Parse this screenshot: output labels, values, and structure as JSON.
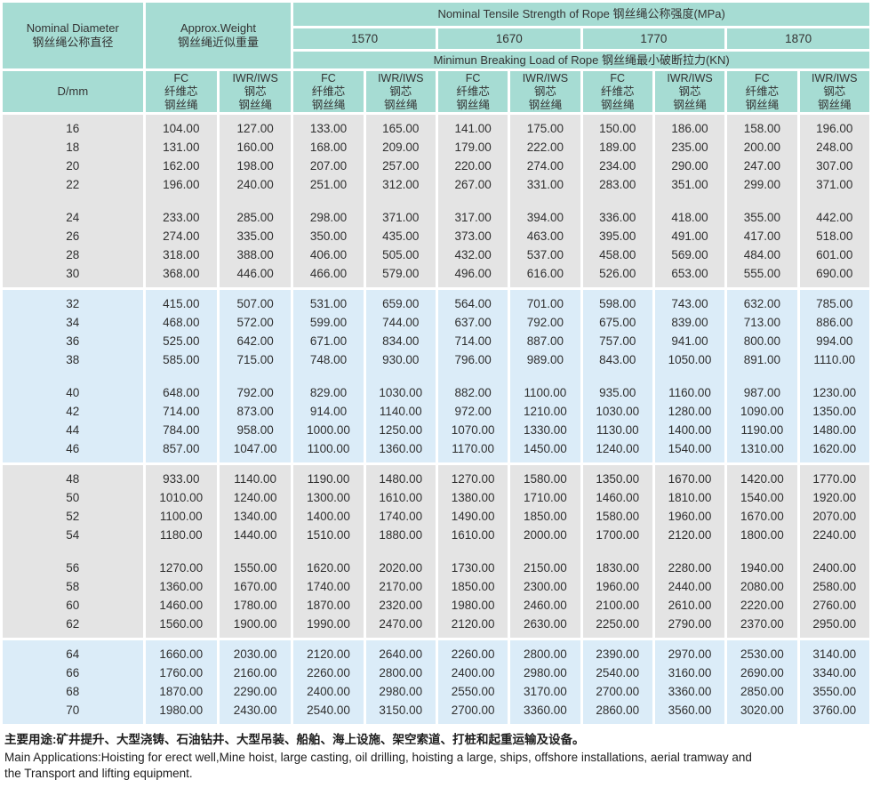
{
  "header": {
    "col_diameter": {
      "en": "Nominal Diameter",
      "zh": "钢丝绳公称直径"
    },
    "col_weight": {
      "en": "Approx.Weight",
      "zh": "钢丝绳近似重量"
    },
    "tensile_title": "Nominal Tensile Strength of Rope  钢丝绳公称强度(MPa)",
    "strength_grades": [
      "1570",
      "1670",
      "1770",
      "1870"
    ],
    "breaking_title": "Minimun Breaking Load of Rope  钢丝绳最小破断拉力(KN)",
    "d_mm": "D/mm",
    "fc_label": {
      "l1": "FC",
      "l2": "纤维芯",
      "l3": "钢丝绳"
    },
    "iwr_label": {
      "l1": "IWR/IWS",
      "l2": "钢芯",
      "l3": "钢丝绳"
    }
  },
  "colors": {
    "header_teal": "#a6dcd3",
    "block_gray": "#e4e4e4",
    "block_blue": "#dbecf8",
    "grid_white": "#ffffff"
  },
  "table": {
    "blocks": [
      {
        "color": "gray",
        "groups": [
          [
            [
              "16",
              "104.00",
              "127.00",
              "133.00",
              "165.00",
              "141.00",
              "175.00",
              "150.00",
              "186.00",
              "158.00",
              "196.00"
            ],
            [
              "18",
              "131.00",
              "160.00",
              "168.00",
              "209.00",
              "179.00",
              "222.00",
              "189.00",
              "235.00",
              "200.00",
              "248.00"
            ],
            [
              "20",
              "162.00",
              "198.00",
              "207.00",
              "257.00",
              "220.00",
              "274.00",
              "234.00",
              "290.00",
              "247.00",
              "307.00"
            ],
            [
              "22",
              "196.00",
              "240.00",
              "251.00",
              "312.00",
              "267.00",
              "331.00",
              "283.00",
              "351.00",
              "299.00",
              "371.00"
            ]
          ],
          [
            [
              "24",
              "233.00",
              "285.00",
              "298.00",
              "371.00",
              "317.00",
              "394.00",
              "336.00",
              "418.00",
              "355.00",
              "442.00"
            ],
            [
              "26",
              "274.00",
              "335.00",
              "350.00",
              "435.00",
              "373.00",
              "463.00",
              "395.00",
              "491.00",
              "417.00",
              "518.00"
            ],
            [
              "28",
              "318.00",
              "388.00",
              "406.00",
              "505.00",
              "432.00",
              "537.00",
              "458.00",
              "569.00",
              "484.00",
              "601.00"
            ],
            [
              "30",
              "368.00",
              "446.00",
              "466.00",
              "579.00",
              "496.00",
              "616.00",
              "526.00",
              "653.00",
              "555.00",
              "690.00"
            ]
          ]
        ]
      },
      {
        "color": "blue",
        "groups": [
          [
            [
              "32",
              "415.00",
              "507.00",
              "531.00",
              "659.00",
              "564.00",
              "701.00",
              "598.00",
              "743.00",
              "632.00",
              "785.00"
            ],
            [
              "34",
              "468.00",
              "572.00",
              "599.00",
              "744.00",
              "637.00",
              "792.00",
              "675.00",
              "839.00",
              "713.00",
              "886.00"
            ],
            [
              "36",
              "525.00",
              "642.00",
              "671.00",
              "834.00",
              "714.00",
              "887.00",
              "757.00",
              "941.00",
              "800.00",
              "994.00"
            ],
            [
              "38",
              "585.00",
              "715.00",
              "748.00",
              "930.00",
              "796.00",
              "989.00",
              "843.00",
              "1050.00",
              "891.00",
              "1110.00"
            ]
          ],
          [
            [
              "40",
              "648.00",
              "792.00",
              "829.00",
              "1030.00",
              "882.00",
              "1100.00",
              "935.00",
              "1160.00",
              "987.00",
              "1230.00"
            ],
            [
              "42",
              "714.00",
              "873.00",
              "914.00",
              "1140.00",
              "972.00",
              "1210.00",
              "1030.00",
              "1280.00",
              "1090.00",
              "1350.00"
            ],
            [
              "44",
              "784.00",
              "958.00",
              "1000.00",
              "1250.00",
              "1070.00",
              "1330.00",
              "1130.00",
              "1400.00",
              "1190.00",
              "1480.00"
            ],
            [
              "46",
              "857.00",
              "1047.00",
              "1100.00",
              "1360.00",
              "1170.00",
              "1450.00",
              "1240.00",
              "1540.00",
              "1310.00",
              "1620.00"
            ]
          ]
        ]
      },
      {
        "color": "gray",
        "groups": [
          [
            [
              "48",
              "933.00",
              "1140.00",
              "1190.00",
              "1480.00",
              "1270.00",
              "1580.00",
              "1350.00",
              "1670.00",
              "1420.00",
              "1770.00"
            ],
            [
              "50",
              "1010.00",
              "1240.00",
              "1300.00",
              "1610.00",
              "1380.00",
              "1710.00",
              "1460.00",
              "1810.00",
              "1540.00",
              "1920.00"
            ],
            [
              "52",
              "1100.00",
              "1340.00",
              "1400.00",
              "1740.00",
              "1490.00",
              "1850.00",
              "1580.00",
              "1960.00",
              "1670.00",
              "2070.00"
            ],
            [
              "54",
              "1180.00",
              "1440.00",
              "1510.00",
              "1880.00",
              "1610.00",
              "2000.00",
              "1700.00",
              "2120.00",
              "1800.00",
              "2240.00"
            ]
          ],
          [
            [
              "56",
              "1270.00",
              "1550.00",
              "1620.00",
              "2020.00",
              "1730.00",
              "2150.00",
              "1830.00",
              "2280.00",
              "1940.00",
              "2400.00"
            ],
            [
              "58",
              "1360.00",
              "1670.00",
              "1740.00",
              "2170.00",
              "1850.00",
              "2300.00",
              "1960.00",
              "2440.00",
              "2080.00",
              "2580.00"
            ],
            [
              "60",
              "1460.00",
              "1780.00",
              "1870.00",
              "2320.00",
              "1980.00",
              "2460.00",
              "2100.00",
              "2610.00",
              "2220.00",
              "2760.00"
            ],
            [
              "62",
              "1560.00",
              "1900.00",
              "1990.00",
              "2470.00",
              "2120.00",
              "2630.00",
              "2250.00",
              "2790.00",
              "2370.00",
              "2950.00"
            ]
          ]
        ]
      },
      {
        "color": "blue",
        "groups": [
          [
            [
              "64",
              "1660.00",
              "2030.00",
              "2120.00",
              "2640.00",
              "2260.00",
              "2800.00",
              "2390.00",
              "2970.00",
              "2530.00",
              "3140.00"
            ],
            [
              "66",
              "1760.00",
              "2160.00",
              "2260.00",
              "2800.00",
              "2400.00",
              "2980.00",
              "2540.00",
              "3160.00",
              "2690.00",
              "3340.00"
            ],
            [
              "68",
              "1870.00",
              "2290.00",
              "2400.00",
              "2980.00",
              "2550.00",
              "3170.00",
              "2700.00",
              "3360.00",
              "2850.00",
              "3550.00"
            ],
            [
              "70",
              "1980.00",
              "2430.00",
              "2540.00",
              "3150.00",
              "2700.00",
              "3360.00",
              "2860.00",
              "3560.00",
              "3020.00",
              "3760.00"
            ]
          ]
        ]
      }
    ]
  },
  "footer": {
    "zh": "主要用途:矿井提升、大型浇铸、石油钻井、大型吊装、船舶、海上设施、架空索道、打桩和起重运输及设备。",
    "en1": "Main Applications:Hoisting for erect well,Mine hoist, large casting, oil drilling, hoisting a large, ships, offshore installations, aerial tramway and",
    "en2": "the Transport and lifting equipment."
  }
}
